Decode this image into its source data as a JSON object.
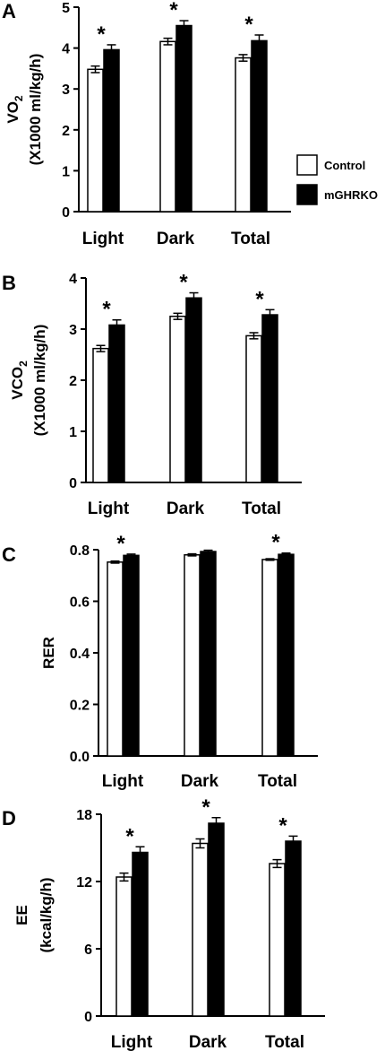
{
  "legend": [
    {
      "label": "Control",
      "color": "#ffffff"
    },
    {
      "label": "mGHRKO",
      "color": "#000000"
    }
  ],
  "chart_data": [
    {
      "type": "bar",
      "panel": "A",
      "ylabel_line1": "VO",
      "ylabel_sub": "2",
      "ylabel_line2": "(X1000 ml/kg/h)",
      "categories": [
        "Light",
        "Dark",
        "Total"
      ],
      "ylim": [
        0,
        5
      ],
      "yticks": [
        "0",
        "1",
        "2",
        "3",
        "4",
        "5"
      ],
      "series": [
        {
          "name": "Control",
          "values": [
            3.48,
            4.16,
            3.76
          ],
          "errors": [
            0.08,
            0.08,
            0.08
          ]
        },
        {
          "name": "mGHRKO",
          "values": [
            3.96,
            4.55,
            4.18
          ],
          "errors": [
            0.12,
            0.12,
            0.14
          ]
        }
      ],
      "significance": [
        "*",
        "*",
        "*"
      ]
    },
    {
      "type": "bar",
      "panel": "B",
      "ylabel_line1": "VCO",
      "ylabel_sub": "2",
      "ylabel_line2": "(X1000 ml/kg/h)",
      "categories": [
        "Light",
        "Dark",
        "Total"
      ],
      "ylim": [
        0,
        4
      ],
      "yticks": [
        "0",
        "1",
        "2",
        "3",
        "4"
      ],
      "series": [
        {
          "name": "Control",
          "values": [
            2.62,
            3.25,
            2.87
          ],
          "errors": [
            0.06,
            0.06,
            0.06
          ]
        },
        {
          "name": "mGHRKO",
          "values": [
            3.08,
            3.61,
            3.28
          ],
          "errors": [
            0.1,
            0.1,
            0.1
          ]
        }
      ],
      "significance": [
        "*",
        "*",
        "*"
      ]
    },
    {
      "type": "bar",
      "panel": "C",
      "ylabel_line1": "RER",
      "ylabel_sub": "",
      "ylabel_line2": "",
      "categories": [
        "Light",
        "Dark",
        "Total"
      ],
      "ylim": [
        0,
        0.8
      ],
      "yticks": [
        "0.0",
        "0.2",
        "0.4",
        "0.6",
        "0.8"
      ],
      "series": [
        {
          "name": "Control",
          "values": [
            0.752,
            0.78,
            0.762
          ],
          "errors": [
            0.004,
            0.004,
            0.003
          ]
        },
        {
          "name": "mGHRKO",
          "values": [
            0.778,
            0.793,
            0.782
          ],
          "errors": [
            0.005,
            0.005,
            0.005
          ]
        }
      ],
      "significance": [
        "*",
        "",
        "*"
      ]
    },
    {
      "type": "bar",
      "panel": "D",
      "ylabel_line1": "EE",
      "ylabel_sub": "",
      "ylabel_line2": "(kcal/kg/h)",
      "categories": [
        "Light",
        "Dark",
        "Total"
      ],
      "ylim": [
        0,
        18
      ],
      "yticks": [
        "0",
        "6",
        "12",
        "18"
      ],
      "series": [
        {
          "name": "Control",
          "values": [
            12.4,
            15.4,
            13.6
          ],
          "errors": [
            0.35,
            0.4,
            0.35
          ]
        },
        {
          "name": "mGHRKO",
          "values": [
            14.6,
            17.2,
            15.6
          ],
          "errors": [
            0.5,
            0.5,
            0.45
          ]
        }
      ],
      "significance": [
        "*",
        "*",
        "*"
      ]
    }
  ]
}
